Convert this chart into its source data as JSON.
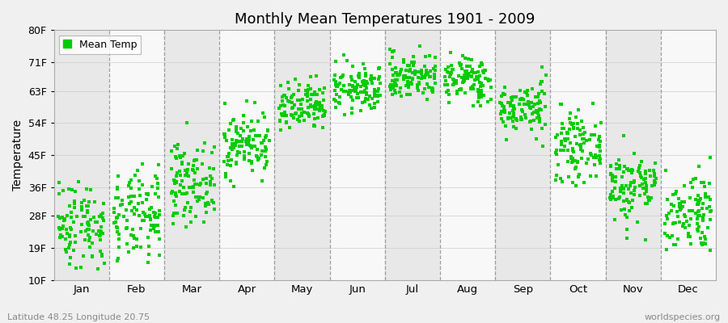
{
  "title": "Monthly Mean Temperatures 1901 - 2009",
  "ylabel": "Temperature",
  "xlabel_labels": [
    "Jan",
    "Feb",
    "Mar",
    "Apr",
    "May",
    "Jun",
    "Jul",
    "Aug",
    "Sep",
    "Oct",
    "Nov",
    "Dec"
  ],
  "ytick_labels": [
    "10F",
    "19F",
    "28F",
    "36F",
    "45F",
    "54F",
    "63F",
    "71F",
    "80F"
  ],
  "ytick_values": [
    10,
    19,
    28,
    36,
    45,
    54,
    63,
    71,
    80
  ],
  "ylim": [
    10,
    80
  ],
  "dot_color": "#00cc00",
  "legend_label": "Mean Temp",
  "background_color": "#f0f0f0",
  "band_color_even": "#e8e8e8",
  "band_color_odd": "#f8f8f8",
  "subtitle_left": "Latitude 48.25 Longitude 20.75",
  "subtitle_right": "worldspecies.org",
  "monthly_means_C": [
    -3.5,
    -2.5,
    3.0,
    9.0,
    14.5,
    17.5,
    19.5,
    19.0,
    14.5,
    8.5,
    2.5,
    -1.5
  ],
  "monthly_stds_C": [
    3.5,
    3.5,
    3.0,
    2.5,
    2.0,
    1.8,
    1.8,
    1.8,
    2.0,
    2.5,
    2.8,
    3.2
  ],
  "n_years": 109,
  "start_year": 1901,
  "end_year": 2009
}
